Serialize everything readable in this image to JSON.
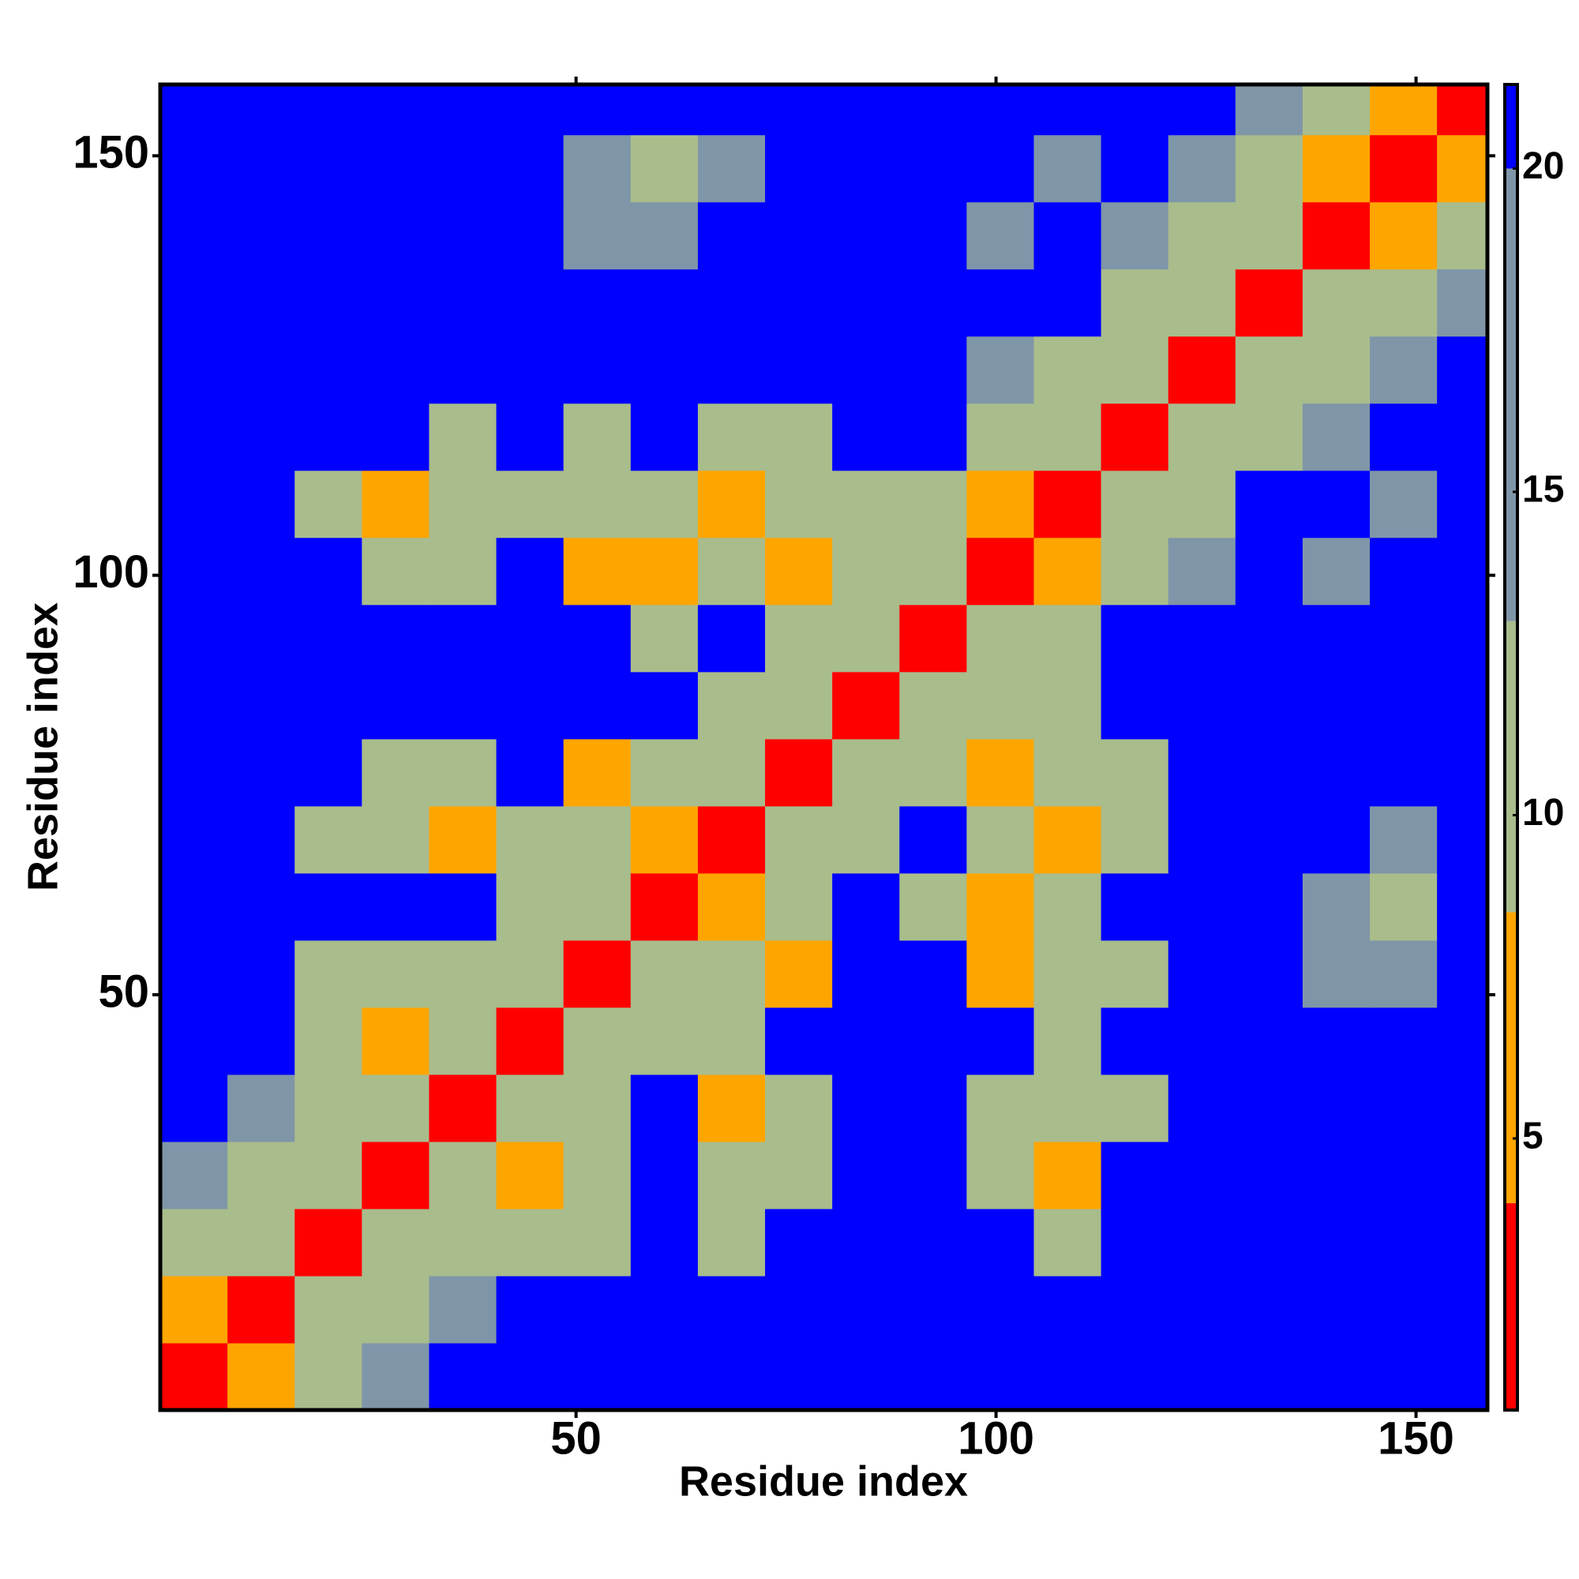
{
  "chart_data": {
    "type": "heatmap",
    "xlabel": "Residue index",
    "ylabel": "Residue index",
    "xbins": [
      0.5,
      8.5,
      16.5,
      24.5,
      32.5,
      40.5,
      48.5,
      56.5,
      64.5,
      72.5,
      80.5,
      88.5,
      96.5,
      104.5,
      112.5,
      120.5,
      128.5,
      136.5,
      144.5,
      152.5,
      158.5
    ],
    "ybins": [
      0.5,
      8.5,
      16.5,
      24.5,
      32.5,
      40.5,
      48.5,
      56.5,
      64.5,
      72.5,
      80.5,
      88.5,
      96.5,
      104.5,
      112.5,
      120.5,
      128.5,
      136.5,
      144.5,
      152.5,
      158.5
    ],
    "values": [
      [
        2,
        6,
        11,
        16,
        21,
        21,
        21,
        21,
        21,
        21,
        21,
        21,
        21,
        21,
        21,
        21,
        21,
        21,
        21,
        21
      ],
      [
        6,
        2,
        9,
        13,
        17,
        21,
        21,
        21,
        21,
        21,
        21,
        21,
        21,
        21,
        21,
        21,
        21,
        21,
        21,
        21
      ],
      [
        11,
        9,
        2,
        9,
        13,
        13,
        12,
        21,
        13,
        21,
        21,
        21,
        21,
        13,
        21,
        21,
        21,
        21,
        21,
        21
      ],
      [
        16,
        13,
        9,
        2,
        9,
        6,
        10,
        21,
        10,
        12,
        21,
        21,
        13,
        6,
        21,
        21,
        21,
        21,
        21,
        21
      ],
      [
        21,
        17,
        13,
        9,
        2,
        9,
        12,
        21,
        6,
        12,
        21,
        21,
        12,
        10,
        13,
        21,
        21,
        21,
        21,
        21
      ],
      [
        21,
        21,
        13,
        6,
        9,
        2,
        9,
        13,
        12,
        21,
        21,
        21,
        21,
        12,
        21,
        21,
        21,
        21,
        21,
        21
      ],
      [
        21,
        21,
        12,
        10,
        12,
        9,
        2,
        9,
        10,
        6,
        21,
        21,
        6,
        10,
        13,
        21,
        21,
        15,
        16,
        21
      ],
      [
        21,
        21,
        21,
        21,
        21,
        13,
        9,
        2,
        6,
        9,
        21,
        12,
        6,
        12,
        21,
        21,
        21,
        15,
        12,
        21
      ],
      [
        21,
        21,
        13,
        10,
        6,
        12,
        10,
        6,
        2,
        9,
        13,
        21,
        10,
        6,
        13,
        21,
        21,
        21,
        16,
        21
      ],
      [
        21,
        21,
        21,
        12,
        12,
        21,
        6,
        9,
        9,
        2,
        9,
        13,
        6,
        10,
        13,
        21,
        21,
        21,
        21,
        21
      ],
      [
        21,
        21,
        21,
        21,
        21,
        21,
        21,
        21,
        13,
        9,
        2,
        9,
        10,
        13,
        21,
        21,
        21,
        21,
        21,
        21
      ],
      [
        21,
        21,
        21,
        21,
        21,
        21,
        21,
        12,
        21,
        13,
        9,
        2,
        9,
        12,
        21,
        21,
        21,
        21,
        21,
        21
      ],
      [
        21,
        21,
        21,
        13,
        12,
        21,
        6,
        6,
        10,
        6,
        10,
        9,
        2,
        6,
        13,
        15,
        21,
        16,
        21,
        21
      ],
      [
        21,
        21,
        13,
        6,
        10,
        12,
        10,
        12,
        6,
        10,
        13,
        12,
        6,
        2,
        9,
        13,
        21,
        21,
        17,
        21
      ],
      [
        21,
        21,
        21,
        21,
        13,
        21,
        13,
        21,
        13,
        13,
        21,
        21,
        13,
        9,
        2,
        9,
        13,
        17,
        21,
        21
      ],
      [
        21,
        21,
        21,
        21,
        21,
        21,
        21,
        21,
        21,
        21,
        21,
        21,
        15,
        13,
        9,
        2,
        9,
        13,
        15,
        21
      ],
      [
        21,
        21,
        21,
        21,
        21,
        21,
        21,
        21,
        21,
        21,
        21,
        21,
        21,
        21,
        13,
        9,
        2,
        9,
        12,
        15
      ],
      [
        21,
        21,
        21,
        21,
        21,
        21,
        15,
        15,
        21,
        21,
        21,
        21,
        16,
        21,
        17,
        13,
        9,
        2,
        6,
        11
      ],
      [
        21,
        21,
        21,
        21,
        21,
        21,
        16,
        12,
        16,
        21,
        21,
        21,
        21,
        17,
        21,
        15,
        12,
        6,
        2,
        6
      ],
      [
        21,
        21,
        21,
        21,
        21,
        21,
        21,
        21,
        21,
        21,
        21,
        21,
        21,
        21,
        21,
        21,
        15,
        11,
        6,
        2
      ]
    ],
    "xlim": [
      0.5,
      158.5
    ],
    "ylim": [
      0.5,
      158.5
    ],
    "xticks": [
      50,
      100,
      150
    ],
    "yticks": [
      50,
      100,
      150
    ],
    "zlim": [
      0.8,
      21.3
    ],
    "zticks": [
      5,
      10,
      15,
      20
    ],
    "colorscale": [
      {
        "max": 4,
        "color": "#ff0000"
      },
      {
        "max": 8.5,
        "color": "#ffa500"
      },
      {
        "max": 13,
        "color": "#a9bc8c"
      },
      {
        "max": 20,
        "color": "#7f96a8"
      },
      {
        "max": 21.3,
        "color": "#0000ff"
      }
    ]
  }
}
